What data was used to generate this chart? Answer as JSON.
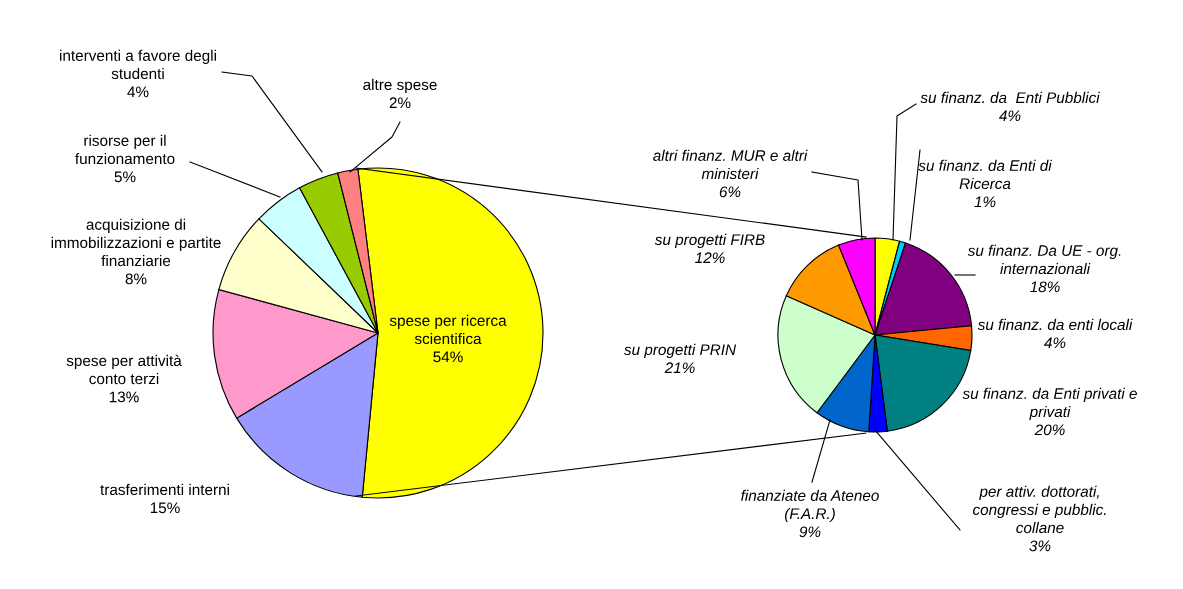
{
  "chart_data": [
    {
      "type": "pie",
      "categories": [
        "spese per ricerca\nscientifica",
        "trasferimenti interni",
        "spese per attività\nconto terzi",
        "acquisizione di\nimmobilizzazioni e partite\nfinanziarie",
        "risorse per il\nfunzionamento",
        "interventi a favore degli\nstudenti",
        "altre spese"
      ],
      "values": [
        54,
        15,
        13,
        8,
        5,
        4,
        2
      ],
      "value_labels": [
        "54%",
        "15%",
        "13%",
        "8%",
        "5%",
        "4%",
        "2%"
      ],
      "colors": [
        "#ffff00",
        "#9999ff",
        "#ff99cc",
        "#ffffcc",
        "#ccffff",
        "#99cc00",
        "#ff8080"
      ]
    },
    {
      "type": "pie",
      "categories": [
        "su finanz. da  Enti Pubblici",
        "su finanz. da Enti di\nRicerca",
        "su finanz. Da UE - org.\ninternazionali",
        "su finanz. da enti locali",
        "su finanz. da Enti privati e\nprivati",
        "per attiv. dottorati,\ncongressi e pubblic.\ncollane",
        "finanziate da Ateneo\n(F.A.R.)",
        "su progetti PRIN",
        "su progetti FIRB",
        "altri finanz. MUR e altri\nministeri"
      ],
      "values": [
        4,
        1,
        18,
        4,
        20,
        3,
        9,
        21,
        12,
        6
      ],
      "value_labels": [
        "4%",
        "1%",
        "18%",
        "4%",
        "20%",
        "3%",
        "9%",
        "21%",
        "12%",
        "6%"
      ],
      "colors": [
        "#ffff00",
        "#00ccff",
        "#800080",
        "#ff6600",
        "#008080",
        "#0000ff",
        "#0066cc",
        "#ccffcc",
        "#ff9900",
        "#ff00ff"
      ]
    }
  ]
}
